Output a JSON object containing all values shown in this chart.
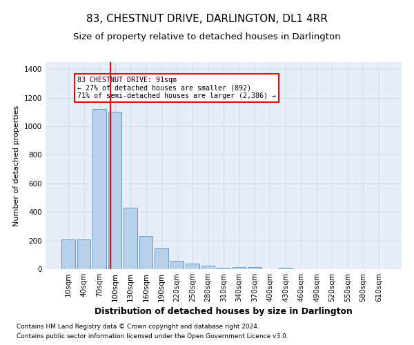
{
  "title": "83, CHESTNUT DRIVE, DARLINGTON, DL1 4RR",
  "subtitle": "Size of property relative to detached houses in Darlington",
  "xlabel": "Distribution of detached houses by size in Darlington",
  "ylabel": "Number of detached properties",
  "footnote1": "Contains HM Land Registry data © Crown copyright and database right 2024.",
  "footnote2": "Contains public sector information licensed under the Open Government Licence v3.0.",
  "bar_labels": [
    "10sqm",
    "40sqm",
    "70sqm",
    "100sqm",
    "130sqm",
    "160sqm",
    "190sqm",
    "220sqm",
    "250sqm",
    "280sqm",
    "310sqm",
    "340sqm",
    "370sqm",
    "400sqm",
    "430sqm",
    "460sqm",
    "490sqm",
    "520sqm",
    "550sqm",
    "580sqm",
    "610sqm"
  ],
  "bar_values": [
    210,
    210,
    1120,
    1100,
    430,
    230,
    145,
    57,
    38,
    25,
    10,
    15,
    15,
    0,
    12,
    0,
    0,
    0,
    0,
    0,
    0
  ],
  "bar_color": "#b8d0ea",
  "bar_edge_color": "#6699cc",
  "ylim": [
    0,
    1450
  ],
  "yticks": [
    0,
    200,
    400,
    600,
    800,
    1000,
    1200,
    1400
  ],
  "red_line_x": 2.7,
  "annotation_text": "83 CHESTNUT DRIVE: 91sqm\n← 27% of detached houses are smaller (892)\n71% of semi-detached houses are larger (2,386) →",
  "grid_color": "#ccd8e8",
  "background_color": "#e8eef8",
  "title_fontsize": 11,
  "subtitle_fontsize": 9.5,
  "ylabel_fontsize": 8,
  "xlabel_fontsize": 9,
  "tick_fontsize": 7.5,
  "footnote_fontsize": 6.5
}
